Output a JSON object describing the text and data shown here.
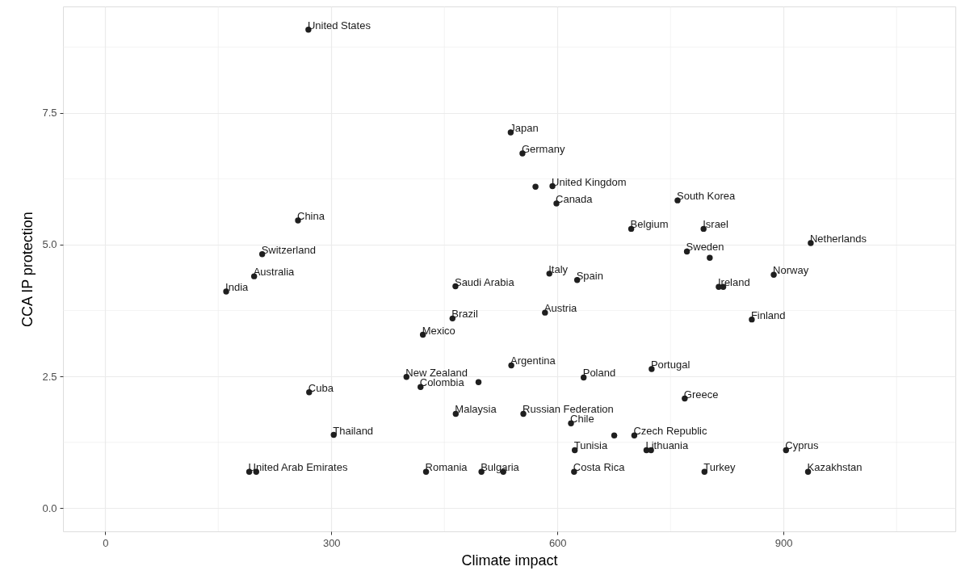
{
  "chart_data": {
    "type": "scatter",
    "xlabel": "Climate impact",
    "ylabel": "CCA IP protection",
    "xlim": [
      -56,
      1128
    ],
    "ylim": [
      -0.44,
      9.52
    ],
    "xticks": [
      0,
      300,
      600,
      900
    ],
    "yticks": [
      {
        "value": 0,
        "label": "0.0"
      },
      {
        "value": 2.5,
        "label": "2.5"
      },
      {
        "value": 5,
        "label": "5.0"
      },
      {
        "value": 7.5,
        "label": "7.5"
      }
    ],
    "grid": true,
    "marker": "circle",
    "series": [
      {
        "color": "#1f1f1f",
        "x": [
          269.6,
          538,
          553.6,
          570.9,
          593.4,
          598.7,
          759.4,
          697.9,
          793.9,
          936.1,
          771.8,
          802.1,
          589.3,
          626.2,
          887,
          814,
          820,
          255.8,
          208.3,
          197.6,
          160.5,
          464.7,
          583.5,
          857.9,
          538.8,
          634.8,
          725,
          768.9,
          554.8,
          618,
          675.4,
          702,
          623,
          718.1,
          724.2,
          903.3,
          499.2,
          528.2,
          622.1,
          795.1,
          932.5,
          460.8,
          421.5,
          399.7,
          418.4,
          495.3,
          270.6,
          465.1,
          303.2,
          191.1,
          200.4,
          425.7
        ],
        "values": [
          9.08,
          7.13,
          6.73,
          6.1,
          6.11,
          5.78,
          5.84,
          5.3,
          5.3,
          5.03,
          4.87,
          4.75,
          4.45,
          4.33,
          4.43,
          4.2,
          4.2,
          5.46,
          4.82,
          4.4,
          4.11,
          4.21,
          3.71,
          3.58,
          2.71,
          2.48,
          2.64,
          2.08,
          1.79,
          1.61,
          1.38,
          1.38,
          1.1,
          1.1,
          1.1,
          1.1,
          0.69,
          0.69,
          0.69,
          0.69,
          0.69,
          3.6,
          3.29,
          2.49,
          2.3,
          2.39,
          2.2,
          1.79,
          1.39,
          0.69,
          0.69,
          0.69
        ]
      }
    ],
    "annotations": [
      {
        "text": "United States",
        "x": 269.6,
        "y": 9.08
      },
      {
        "text": "Japan",
        "x": 538,
        "y": 7.13
      },
      {
        "text": "Germany",
        "x": 553.6,
        "y": 6.73
      },
      {
        "text": "United Kingdom",
        "x": 593.4,
        "y": 6.11
      },
      {
        "text": "Canada",
        "x": 598.7,
        "y": 5.78
      },
      {
        "text": "South Korea",
        "x": 759.4,
        "y": 5.84
      },
      {
        "text": "Belgium",
        "x": 697.9,
        "y": 5.3
      },
      {
        "text": "Israel",
        "x": 793.9,
        "y": 5.3
      },
      {
        "text": "Netherlands",
        "x": 936.1,
        "y": 5.03
      },
      {
        "text": "Sweden",
        "x": 771.8,
        "y": 4.87
      },
      {
        "text": "Italy",
        "x": 589.3,
        "y": 4.45
      },
      {
        "text": "Spain",
        "x": 626.2,
        "y": 4.33
      },
      {
        "text": "Norway",
        "x": 887,
        "y": 4.43
      },
      {
        "text": "Ireland",
        "x": 814,
        "y": 4.2
      },
      {
        "text": "China",
        "x": 255.8,
        "y": 5.46
      },
      {
        "text": "Switzerland",
        "x": 208.3,
        "y": 4.82
      },
      {
        "text": "Australia",
        "x": 197.6,
        "y": 4.4
      },
      {
        "text": "India",
        "x": 160.5,
        "y": 4.11
      },
      {
        "text": "Saudi Arabia",
        "x": 464.7,
        "y": 4.21
      },
      {
        "text": "Austria",
        "x": 583.5,
        "y": 3.71
      },
      {
        "text": "Finland",
        "x": 857.9,
        "y": 3.58
      },
      {
        "text": "Argentina",
        "x": 538.8,
        "y": 2.71
      },
      {
        "text": "Poland",
        "x": 634.8,
        "y": 2.48
      },
      {
        "text": "Portugal",
        "x": 725,
        "y": 2.64
      },
      {
        "text": "Greece",
        "x": 768.9,
        "y": 2.08
      },
      {
        "text": "Russian Federation",
        "x": 554.8,
        "y": 1.79
      },
      {
        "text": "Chile",
        "x": 618,
        "y": 1.61
      },
      {
        "text": "Czech Republic",
        "x": 702,
        "y": 1.38
      },
      {
        "text": "Tunisia",
        "x": 623,
        "y": 1.1
      },
      {
        "text": "Lithuania",
        "x": 718.1,
        "y": 1.1
      },
      {
        "text": "Cyprus",
        "x": 903.3,
        "y": 1.1
      },
      {
        "text": "Bulgaria",
        "x": 499.2,
        "y": 0.69
      },
      {
        "text": "Costa Rica",
        "x": 622.1,
        "y": 0.69
      },
      {
        "text": "Turkey",
        "x": 795.1,
        "y": 0.69
      },
      {
        "text": "Kazakhstan",
        "x": 932.5,
        "y": 0.69
      },
      {
        "text": "Brazil",
        "x": 460.8,
        "y": 3.6
      },
      {
        "text": "Mexico",
        "x": 421.5,
        "y": 3.29
      },
      {
        "text": "New Zealand",
        "x": 399.7,
        "y": 2.49
      },
      {
        "text": "Colombia",
        "x": 418.4,
        "y": 2.3
      },
      {
        "text": "Cuba",
        "x": 270.6,
        "y": 2.2
      },
      {
        "text": "Malaysia",
        "x": 465.1,
        "y": 1.79
      },
      {
        "text": "Thailand",
        "x": 303.2,
        "y": 1.39
      },
      {
        "text": "United Arab Emirates",
        "x": 191.1,
        "y": 0.69
      },
      {
        "text": "Romania",
        "x": 425.7,
        "y": 0.69
      }
    ]
  }
}
